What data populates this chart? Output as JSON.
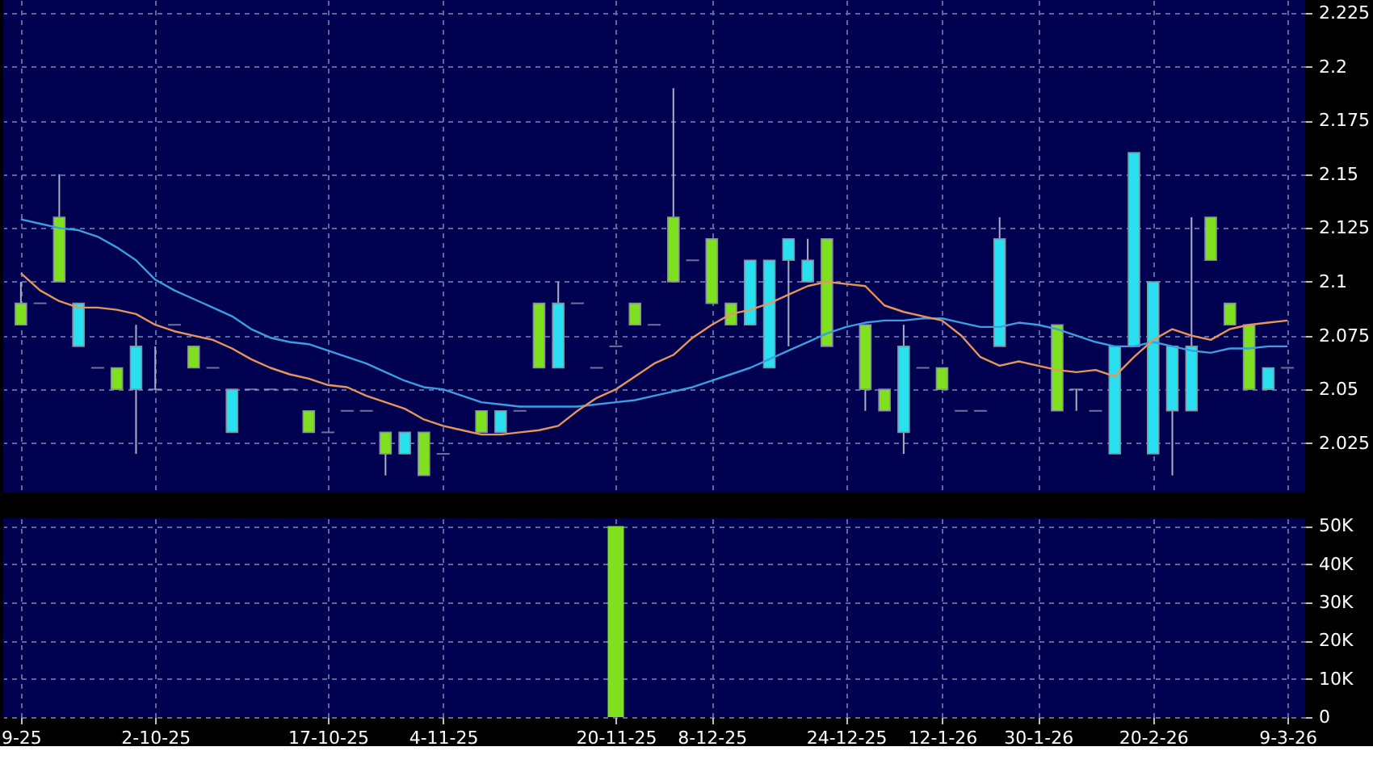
{
  "chart_data": [
    {
      "type": "candlestick",
      "categories": [
        null,
        null,
        null,
        null,
        null,
        null,
        null,
        null,
        null,
        null,
        null,
        null,
        null,
        null,
        null,
        null,
        null,
        null,
        null,
        null,
        null,
        null,
        null,
        null,
        null,
        null,
        null,
        null,
        null,
        null,
        null,
        null,
        null,
        null,
        null,
        null,
        null,
        null,
        null,
        null,
        null,
        null,
        null,
        null,
        null,
        null,
        null,
        null,
        null,
        null,
        null,
        null,
        null,
        null,
        null,
        null,
        null,
        null,
        null,
        null,
        null,
        null,
        null,
        null,
        null,
        null,
        null
      ],
      "ohlc": [
        [
          2.08,
          2.1,
          2.08,
          2.09
        ],
        [
          2.09,
          2.09,
          2.09,
          2.09
        ],
        [
          2.1,
          2.15,
          2.1,
          2.13
        ],
        [
          2.09,
          2.09,
          2.07,
          2.07
        ],
        [
          2.06,
          2.06,
          2.06,
          2.06
        ],
        [
          2.05,
          2.06,
          2.05,
          2.06
        ],
        [
          2.07,
          2.08,
          2.02,
          2.05
        ],
        [
          2.05,
          2.07,
          2.05,
          2.05
        ],
        [
          2.08,
          2.08,
          2.08,
          2.08
        ],
        [
          2.06,
          2.07,
          2.06,
          2.07
        ],
        [
          2.06,
          2.06,
          2.06,
          2.06
        ],
        [
          2.05,
          2.05,
          2.03,
          2.03
        ],
        [
          2.05,
          2.05,
          2.05,
          2.05
        ],
        [
          2.05,
          2.05,
          2.05,
          2.05
        ],
        [
          2.05,
          2.05,
          2.05,
          2.05
        ],
        [
          2.03,
          2.04,
          2.03,
          2.04
        ],
        [
          2.03,
          2.03,
          2.03,
          2.03
        ],
        [
          2.04,
          2.04,
          2.04,
          2.04
        ],
        [
          2.04,
          2.04,
          2.04,
          2.04
        ],
        [
          2.02,
          2.03,
          2.01,
          2.03
        ],
        [
          2.03,
          2.03,
          2.02,
          2.02
        ],
        [
          2.01,
          2.03,
          2.01,
          2.03
        ],
        [
          2.02,
          2.02,
          2.02,
          2.02
        ],
        null,
        [
          2.03,
          2.04,
          2.03,
          2.04
        ],
        [
          2.04,
          2.04,
          2.03,
          2.03
        ],
        [
          2.04,
          2.04,
          2.04,
          2.04
        ],
        [
          2.06,
          2.09,
          2.06,
          2.09
        ],
        [
          2.09,
          2.1,
          2.06,
          2.06
        ],
        [
          2.09,
          2.09,
          2.09,
          2.09
        ],
        [
          2.06,
          2.06,
          2.06,
          2.06
        ],
        [
          2.07,
          2.07,
          2.07,
          2.07
        ],
        [
          2.08,
          2.09,
          2.08,
          2.09
        ],
        [
          2.08,
          2.08,
          2.08,
          2.08
        ],
        [
          2.1,
          2.19,
          2.1,
          2.13
        ],
        [
          2.11,
          2.11,
          2.11,
          2.11
        ],
        [
          2.09,
          2.12,
          2.09,
          2.12
        ],
        [
          2.08,
          2.09,
          2.08,
          2.09
        ],
        [
          2.11,
          2.11,
          2.08,
          2.08
        ],
        [
          2.11,
          2.11,
          2.06,
          2.06
        ],
        [
          2.12,
          2.12,
          2.07,
          2.11
        ],
        [
          2.11,
          2.12,
          2.1,
          2.1
        ],
        [
          2.07,
          2.12,
          2.07,
          2.12
        ],
        null,
        [
          2.05,
          2.08,
          2.04,
          2.08
        ],
        [
          2.04,
          2.05,
          2.04,
          2.05
        ],
        [
          2.07,
          2.08,
          2.02,
          2.03
        ],
        [
          2.06,
          2.06,
          2.06,
          2.06
        ],
        [
          2.05,
          2.06,
          2.05,
          2.06
        ],
        [
          2.04,
          2.04,
          2.04,
          2.04
        ],
        [
          2.04,
          2.04,
          2.04,
          2.04
        ],
        [
          2.12,
          2.13,
          2.07,
          2.07
        ],
        null,
        null,
        [
          2.04,
          2.08,
          2.04,
          2.08
        ],
        [
          2.05,
          2.05,
          2.04,
          2.05
        ],
        [
          2.04,
          2.04,
          2.04,
          2.04
        ],
        [
          2.07,
          2.07,
          2.02,
          2.02
        ],
        [
          2.16,
          2.16,
          2.07,
          2.07
        ],
        [
          2.1,
          2.1,
          2.02,
          2.02
        ],
        [
          2.07,
          2.07,
          2.01,
          2.04
        ],
        [
          2.07,
          2.13,
          2.04,
          2.04
        ],
        [
          2.11,
          2.13,
          2.11,
          2.13
        ],
        [
          2.08,
          2.09,
          2.08,
          2.09
        ],
        [
          2.05,
          2.08,
          2.05,
          2.08
        ],
        [
          2.06,
          2.06,
          2.05,
          2.05
        ],
        [
          2.06,
          2.06,
          2.06,
          2.06
        ]
      ],
      "colors": [
        "#7fe020",
        "#9aa4b8",
        "#7fe020",
        "#28e0f0",
        "#9aa4b8",
        "#7fe020",
        "#28e0f0",
        "#9aa4b8",
        "#9aa4b8",
        "#7fe020",
        "#9aa4b8",
        "#28e0f0",
        "#9aa4b8",
        "#9aa4b8",
        "#9aa4b8",
        "#7fe020",
        "#9aa4b8",
        "#9aa4b8",
        "#9aa4b8",
        "#7fe020",
        "#28e0f0",
        "#7fe020",
        "#9aa4b8",
        null,
        "#7fe020",
        "#28e0f0",
        "#9aa4b8",
        "#7fe020",
        "#28e0f0",
        "#9aa4b8",
        "#9aa4b8",
        "#9aa4b8",
        "#7fe020",
        "#9aa4b8",
        "#7fe020",
        "#9aa4b8",
        "#7fe020",
        "#7fe020",
        "#28e0f0",
        "#28e0f0",
        "#28e0f0",
        "#28e0f0",
        "#7fe020",
        null,
        "#7fe020",
        "#7fe020",
        "#28e0f0",
        "#9aa4b8",
        "#7fe020",
        "#9aa4b8",
        "#9aa4b8",
        "#28e0f0",
        null,
        null,
        "#7fe020",
        "#9aa4b8",
        "#9aa4b8",
        "#28e0f0",
        "#28e0f0",
        "#28e0f0",
        "#28e0f0",
        "#28e0f0",
        "#7fe020",
        "#7fe020",
        "#7fe020",
        "#28e0f0",
        "#9aa4b8"
      ],
      "series": [
        {
          "type": "line",
          "color": "#3a9ee0",
          "values": [
            2.129,
            2.127,
            2.125,
            2.124,
            2.121,
            2.116,
            2.11,
            2.101,
            2.096,
            2.092,
            2.088,
            2.084,
            2.078,
            2.074,
            2.072,
            2.071,
            2.068,
            2.065,
            2.062,
            2.058,
            2.054,
            2.051,
            2.05,
            2.047,
            2.044,
            2.043,
            2.042,
            2.042,
            2.042,
            2.042,
            2.043,
            2.044,
            2.045,
            2.047,
            2.049,
            2.051,
            2.054,
            2.057,
            2.06,
            2.064,
            2.068,
            2.072,
            2.076,
            2.079,
            2.081,
            2.082,
            2.082,
            2.083,
            2.083,
            2.081,
            2.079,
            2.079,
            2.081,
            2.08,
            2.078,
            2.075,
            2.072,
            2.07,
            2.07,
            2.072,
            2.07,
            2.068,
            2.067,
            2.069,
            2.069,
            2.07,
            2.07
          ]
        },
        {
          "type": "line",
          "color": "#e8945a",
          "values": [
            2.104,
            2.096,
            2.091,
            2.088,
            2.088,
            2.087,
            2.085,
            2.08,
            2.077,
            2.075,
            2.073,
            2.069,
            2.064,
            2.06,
            2.057,
            2.055,
            2.052,
            2.051,
            2.047,
            2.044,
            2.041,
            2.036,
            2.033,
            2.031,
            2.029,
            2.029,
            2.03,
            2.031,
            2.033,
            2.04,
            2.046,
            2.05,
            2.056,
            2.062,
            2.066,
            2.074,
            2.08,
            2.085,
            2.087,
            2.09,
            2.094,
            2.098,
            2.1,
            2.099,
            2.098,
            2.089,
            2.086,
            2.084,
            2.082,
            2.075,
            2.065,
            2.061,
            2.063,
            2.061,
            2.059,
            2.058,
            2.059,
            2.056,
            2.065,
            2.073,
            2.078,
            2.075,
            2.073,
            2.078,
            2.08,
            2.081,
            2.082
          ]
        }
      ],
      "ylim": [
        2.002,
        2.231
      ],
      "yticks": [
        2.025,
        2.05,
        2.075,
        2.1,
        2.125,
        2.15,
        2.175,
        2.2,
        2.225
      ],
      "grid": true,
      "tick_labels": "y"
    },
    {
      "type": "bar",
      "categories": [
        "9-25",
        null,
        null,
        null,
        null,
        null,
        null,
        "2-10-25",
        null,
        null,
        null,
        null,
        null,
        null,
        null,
        null,
        "17-10-25",
        null,
        null,
        null,
        null,
        null,
        "4-11-25",
        null,
        null,
        null,
        null,
        null,
        null,
        null,
        null,
        "20-11-25",
        null,
        null,
        null,
        null,
        "8-12-25",
        null,
        null,
        null,
        null,
        null,
        null,
        "24-12-25",
        null,
        null,
        null,
        null,
        "12-1-26",
        null,
        null,
        null,
        null,
        "30-1-26",
        null,
        null,
        null,
        null,
        null,
        "20-2-26",
        null,
        null,
        null,
        null,
        null,
        null,
        "9-3-26"
      ],
      "values": [
        null,
        null,
        null,
        null,
        null,
        null,
        null,
        null,
        null,
        null,
        null,
        null,
        null,
        null,
        null,
        null,
        null,
        null,
        null,
        null,
        null,
        null,
        null,
        null,
        null,
        null,
        null,
        null,
        null,
        null,
        null,
        50000,
        null,
        null,
        null,
        null,
        null,
        null,
        null,
        null,
        null,
        null,
        null,
        null,
        null,
        null,
        null,
        null,
        null,
        null,
        null,
        null,
        null,
        null,
        null,
        null,
        null,
        null,
        null,
        null,
        null,
        null,
        null,
        null,
        null,
        null,
        null
      ],
      "color": "#7fe020",
      "ylim": [
        0,
        52000
      ],
      "yticks": [
        0,
        {
          "value": 10000,
          "label": "10K"
        },
        {
          "value": 20000,
          "label": "20K"
        },
        {
          "value": 30000,
          "label": "30K"
        },
        {
          "value": 40000,
          "label": "40K"
        },
        {
          "value": 50000,
          "label": "50K"
        }
      ],
      "grid": true
    }
  ]
}
